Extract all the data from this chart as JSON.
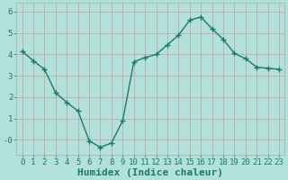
{
  "x": [
    0,
    1,
    2,
    3,
    4,
    5,
    6,
    7,
    8,
    9,
    10,
    11,
    12,
    13,
    14,
    15,
    16,
    17,
    18,
    19,
    20,
    21,
    22,
    23
  ],
  "y": [
    4.15,
    3.7,
    3.3,
    2.2,
    1.75,
    1.35,
    -0.05,
    -0.35,
    -0.15,
    0.9,
    3.65,
    3.85,
    4.0,
    4.45,
    4.9,
    5.6,
    5.75,
    5.2,
    4.7,
    4.05,
    3.8,
    3.4,
    3.35,
    3.3
  ],
  "line_color": "#1a7a6e",
  "marker": "+",
  "markersize": 4,
  "linewidth": 1.0,
  "bg_color": "#b2e0da",
  "grid_color": "#d08080",
  "xlabel": "Humidex (Indice chaleur)",
  "xlabel_fontsize": 8,
  "xlabel_fontweight": "bold",
  "ytick_labels": [
    "-0",
    "1",
    "2",
    "3",
    "4",
    "5",
    "6"
  ],
  "yticks": [
    0,
    1,
    2,
    3,
    4,
    5,
    6
  ],
  "ylim": [
    -0.7,
    6.4
  ],
  "xlim": [
    -0.5,
    23.5
  ],
  "xtick_labels": [
    "0",
    "1",
    "2",
    "3",
    "4",
    "5",
    "6",
    "7",
    "8",
    "9",
    "10",
    "11",
    "12",
    "13",
    "14",
    "15",
    "16",
    "17",
    "18",
    "19",
    "20",
    "21",
    "22",
    "23"
  ],
  "tick_fontsize": 6.5,
  "markeredgewidth": 1.0
}
